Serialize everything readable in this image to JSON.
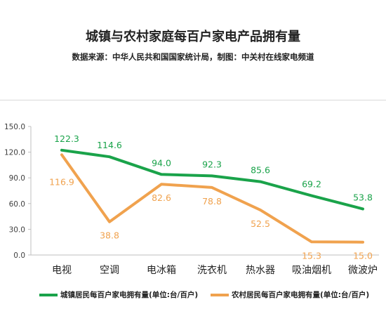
{
  "chart_data": {
    "type": "line",
    "title": "城镇与农村家庭每百户家电产品拥有量",
    "subtitle": "数据来源：中华人民共和国国家统计局，制图：中关村在线家电频道",
    "categories": [
      "电视",
      "空调",
      "电冰箱",
      "洗衣机",
      "热水器",
      "吸油烟机",
      "微波炉"
    ],
    "series": [
      {
        "name": "城镇居民每百户家电拥有量(单位:台/百户)",
        "color": "#1aa34a",
        "values": [
          122.3,
          114.6,
          94.0,
          92.3,
          85.6,
          69.2,
          53.8
        ],
        "labels": [
          "122.3",
          "114.6",
          "94.0",
          "92.3",
          "85.6",
          "69.2",
          "53.8"
        ]
      },
      {
        "name": "农村居民每百户家电拥有量(单位:台/百户)",
        "color": "#f0a24e",
        "values": [
          116.9,
          38.8,
          82.6,
          78.8,
          52.5,
          15.3,
          15.0
        ],
        "labels": [
          "116.9",
          "38.8",
          "82.6",
          "78.8",
          "52.5",
          "15.3",
          "15.0"
        ]
      }
    ],
    "yticks": [
      "0.0",
      "30.0",
      "60.0",
      "90.0",
      "120.0",
      "150.0"
    ],
    "ylim": [
      0,
      150
    ],
    "grid": false,
    "legend": "bottom"
  }
}
